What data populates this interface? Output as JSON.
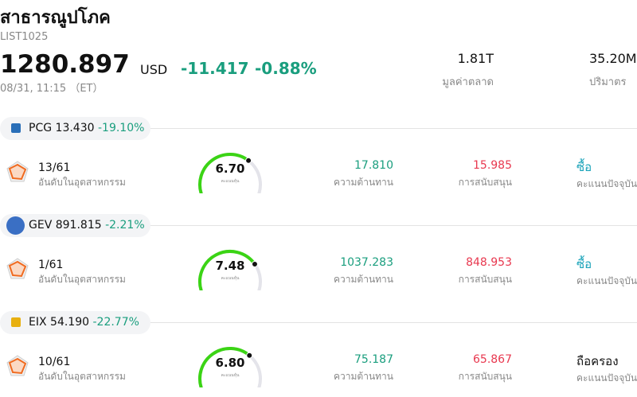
{
  "header": {
    "title": "สาธารณูปโภค",
    "code": "LIST1025",
    "price": "1280.897",
    "currency": "USD",
    "change": "-11.417",
    "change_percent": "-0.88%",
    "time": "08/31, 11:15 （ET）"
  },
  "stats": [
    {
      "value": "1.81T",
      "label": "มูลค่าตลาด"
    },
    {
      "value": "35.20M",
      "label": "ปริมาตร"
    }
  ],
  "stocks": [
    {
      "symbol": "PCG",
      "price": "13.430",
      "change_percent": "-19.10%",
      "rank": "13/61",
      "rank_label": "อันดับในอุตสาหกรรม",
      "score": "6.70",
      "score_label": "คะแนนหุ้น",
      "resistance": "17.810",
      "resistance_label": "ความต้านทาน",
      "support": "15.985",
      "support_label": "การสนับสนุน",
      "rating": "ซื้อ",
      "rating_color": "#17a2b8",
      "rating_label": "คะแนนปัจจุบัน"
    },
    {
      "symbol": "GEV",
      "price": "891.815",
      "change_percent": "-2.21%",
      "rank": "1/61",
      "rank_label": "อันดับในอุตสาหกรรม",
      "score": "7.48",
      "score_label": "คะแนนหุ้น",
      "resistance": "1037.283",
      "resistance_label": "ความต้านทาน",
      "support": "848.953",
      "support_label": "การสนับสนุน",
      "rating": "ซื้อ",
      "rating_color": "#17a2b8",
      "rating_label": "คะแนนปัจจุบัน"
    },
    {
      "symbol": "EIX",
      "price": "54.190",
      "change_percent": "-22.77%",
      "rank": "10/61",
      "rank_label": "อันดับในอุตสาหกรรม",
      "score": "6.80",
      "score_label": "คะแนนหุ้น",
      "resistance": "75.187",
      "resistance_label": "ความต้านทาน",
      "support": "65.867",
      "support_label": "การสนับสนุน",
      "rating": "ถือครอง",
      "rating_color": "#111111",
      "rating_label": "คะแนนปัจจุบัน"
    }
  ]
}
